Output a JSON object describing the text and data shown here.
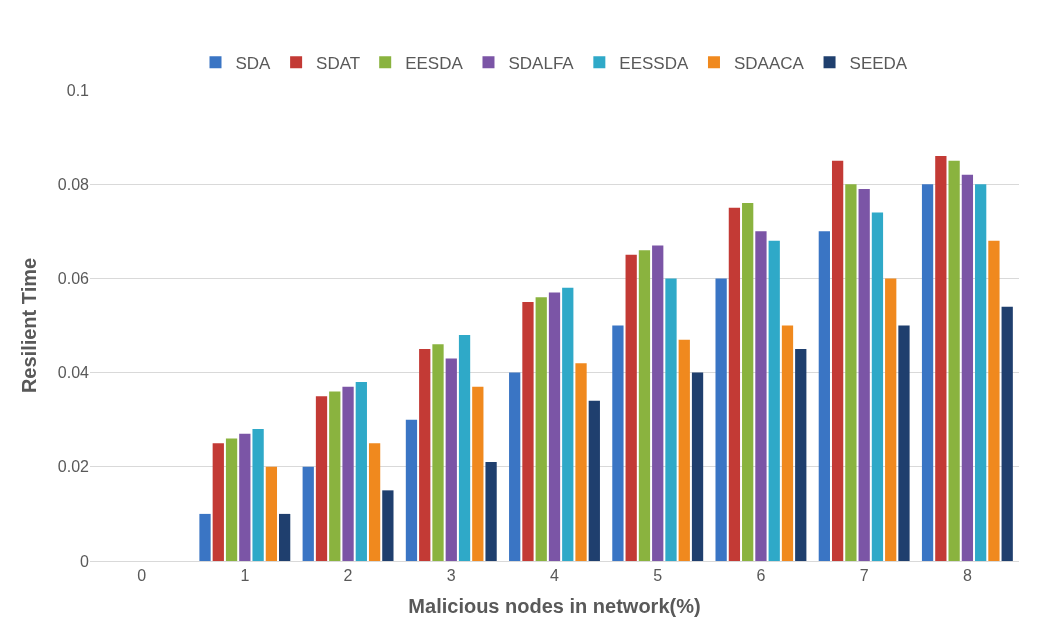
{
  "chart_data": {
    "type": "bar",
    "xlabel": "Malicious nodes in network(%)",
    "ylabel": "Resilient Time",
    "categories": [
      "0",
      "1",
      "2",
      "3",
      "4",
      "5",
      "6",
      "7",
      "8"
    ],
    "series": [
      {
        "name": "SDA",
        "color": "#3a75c4",
        "values": [
          0,
          0.01,
          0.02,
          0.03,
          0.04,
          0.05,
          0.06,
          0.07,
          0.08
        ]
      },
      {
        "name": "SDAT",
        "color": "#c33a35",
        "values": [
          0,
          0.025,
          0.035,
          0.045,
          0.055,
          0.065,
          0.075,
          0.085,
          0.086
        ]
      },
      {
        "name": "EESDA",
        "color": "#8ab33f",
        "values": [
          0,
          0.026,
          0.036,
          0.046,
          0.056,
          0.066,
          0.076,
          0.08,
          0.085
        ]
      },
      {
        "name": "SDALFA",
        "color": "#7b55a6",
        "values": [
          0,
          0.027,
          0.037,
          0.043,
          0.057,
          0.067,
          0.07,
          0.079,
          0.082
        ]
      },
      {
        "name": "EESSDA",
        "color": "#2fa9c8",
        "values": [
          0,
          0.028,
          0.038,
          0.048,
          0.058,
          0.06,
          0.068,
          0.074,
          0.08
        ]
      },
      {
        "name": "SDAACA",
        "color": "#f0891e",
        "values": [
          0,
          0.02,
          0.025,
          0.037,
          0.042,
          0.047,
          0.05,
          0.06,
          0.068
        ]
      },
      {
        "name": "SEEDA",
        "color": "#1f3f6e",
        "values": [
          0,
          0.01,
          0.015,
          0.021,
          0.034,
          0.04,
          0.045,
          0.05,
          0.054
        ]
      }
    ],
    "ylim": [
      0,
      0.1
    ],
    "yticks": [
      0,
      0.02,
      0.04,
      0.06,
      0.08,
      0.1
    ],
    "grid": "y",
    "legend": "top"
  }
}
